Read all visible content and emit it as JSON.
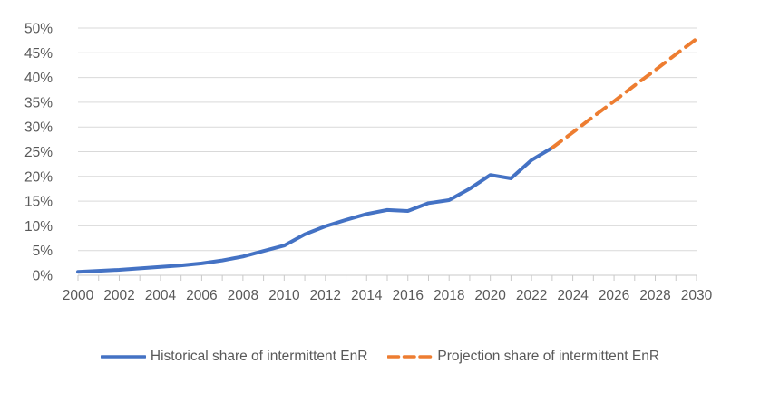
{
  "chart_data": {
    "type": "line",
    "title": "",
    "xlabel": "",
    "ylabel": "",
    "grid": "horizontal",
    "legend_position": "bottom",
    "x_axis": {
      "range": [
        2000,
        2030
      ],
      "tick_values": [
        2000,
        2002,
        2004,
        2006,
        2008,
        2010,
        2012,
        2014,
        2016,
        2018,
        2020,
        2022,
        2024,
        2026,
        2028,
        2030
      ],
      "tick_labels": [
        "2000",
        "2002",
        "2004",
        "2006",
        "2008",
        "2010",
        "2012",
        "2014",
        "2016",
        "2018",
        "2020",
        "2022",
        "2024",
        "2026",
        "2028",
        "2030"
      ],
      "minor_tick_every_years": 1
    },
    "y_axis": {
      "range": [
        0,
        50
      ],
      "tick_values": [
        0,
        5,
        10,
        15,
        20,
        25,
        30,
        35,
        40,
        45,
        50
      ],
      "tick_labels": [
        "0%",
        "5%",
        "10%",
        "15%",
        "20%",
        "25%",
        "30%",
        "35%",
        "40%",
        "45%",
        "50%"
      ]
    },
    "series": [
      {
        "name": "Historical share of intermittent EnR",
        "color": "#4472C4",
        "line_style": "solid",
        "x": [
          2000,
          2001,
          2002,
          2003,
          2004,
          2005,
          2006,
          2007,
          2008,
          2009,
          2010,
          2011,
          2012,
          2013,
          2014,
          2015,
          2016,
          2017,
          2018,
          2019,
          2020,
          2021,
          2022,
          2023
        ],
        "values": [
          0.7,
          0.9,
          1.1,
          1.4,
          1.7,
          2.0,
          2.4,
          3.0,
          3.8,
          4.9,
          6.0,
          8.3,
          9.9,
          11.2,
          12.4,
          13.2,
          13.0,
          14.6,
          15.2,
          17.5,
          20.3,
          19.6,
          23.3,
          25.8
        ]
      },
      {
        "name": "Projection share of intermittent EnR",
        "color": "#ED7D31",
        "line_style": "dashed",
        "x": [
          2023,
          2024,
          2025,
          2026,
          2027,
          2028,
          2029,
          2030
        ],
        "values": [
          25.8,
          28.9,
          32.1,
          35.2,
          38.4,
          41.5,
          44.7,
          47.8
        ]
      }
    ],
    "colors": {
      "grid": "#D9D9D9",
      "axis": "#C9C9C9",
      "tick": "#C9C9C9",
      "label_text": "#595959",
      "legend_text": "#595959"
    }
  }
}
